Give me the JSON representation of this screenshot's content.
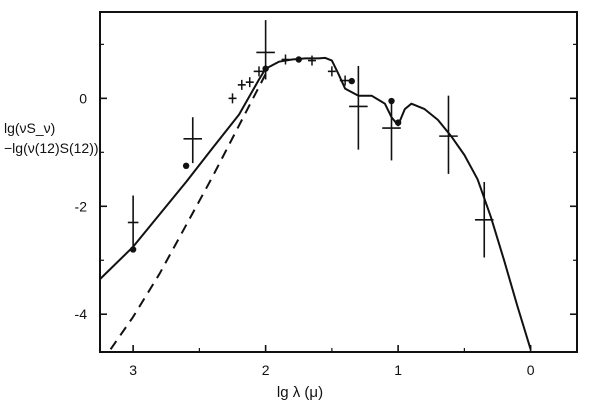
{
  "chart_data": {
    "type": "line",
    "title": "",
    "xlabel": "lg λ (μ)",
    "ylabel_line1": "lg(νS_ν)",
    "ylabel_line2": "−lg(ν(12)S(12))",
    "xlim": [
      3.25,
      -0.35
    ],
    "ylim": [
      -4.7,
      1.6
    ],
    "x_ticks": [
      3,
      2,
      1,
      0
    ],
    "x_tick_labels": [
      "3",
      "2",
      "1",
      "0"
    ],
    "y_ticks": [
      0,
      -2,
      -4
    ],
    "y_tick_labels": [
      "0",
      "-2",
      "-4"
    ],
    "grid": false,
    "legend": "none",
    "series": [
      {
        "style": "solid",
        "x": [
          3.25,
          3.0,
          2.8,
          2.6,
          2.4,
          2.2,
          2.05,
          2.0,
          1.9,
          1.8,
          1.7,
          1.6,
          1.55,
          1.5,
          1.45,
          1.4,
          1.3,
          1.2,
          1.1,
          1.05,
          1.0,
          0.95,
          0.9,
          0.8,
          0.7,
          0.6,
          0.5,
          0.4,
          0.3,
          0.2,
          0.1,
          0.0
        ],
        "y": [
          -3.35,
          -2.75,
          -2.15,
          -1.55,
          -0.92,
          -0.3,
          0.35,
          0.55,
          0.68,
          0.72,
          0.74,
          0.74,
          0.75,
          0.7,
          0.45,
          0.18,
          0.05,
          0.05,
          -0.1,
          -0.35,
          -0.5,
          -0.2,
          -0.1,
          -0.2,
          -0.4,
          -0.7,
          -1.05,
          -1.5,
          -2.2,
          -3.0,
          -3.85,
          -4.65
        ]
      },
      {
        "style": "dashed",
        "x": [
          3.17,
          3.0,
          2.8,
          2.6,
          2.4,
          2.2,
          2.0
        ],
        "y": [
          -4.65,
          -4.05,
          -3.25,
          -2.35,
          -1.45,
          -0.5,
          0.45
        ]
      }
    ],
    "points": [
      {
        "x": 3.0,
        "y": -2.3,
        "xerr": 0.04,
        "y_low": -2.85,
        "y_high": -1.8
      },
      {
        "x": 3.0,
        "y": -2.8,
        "xerr": 0.0,
        "y_low": -2.8,
        "y_high": -2.8
      },
      {
        "x": 2.55,
        "y": -0.75,
        "xerr": 0.07,
        "y_low": -1.2,
        "y_high": -0.35
      },
      {
        "x": 2.6,
        "y": -1.25,
        "xerr": 0.0,
        "y_low": -1.25,
        "y_high": -1.25
      },
      {
        "x": 2.25,
        "y": 0.0,
        "xerr": 0.03,
        "y_low": 0.0,
        "y_high": 0.0
      },
      {
        "x": 2.18,
        "y": 0.25,
        "xerr": 0.03,
        "y_low": 0.25,
        "y_high": 0.25
      },
      {
        "x": 2.12,
        "y": 0.3,
        "xerr": 0.03,
        "y_low": 0.3,
        "y_high": 0.3
      },
      {
        "x": 2.05,
        "y": 0.5,
        "xerr": 0.04,
        "y_low": 0.5,
        "y_high": 0.5
      },
      {
        "x": 2.0,
        "y": 0.55,
        "xerr": 0.0,
        "y_low": 0.55,
        "y_high": 0.55
      },
      {
        "x": 2.0,
        "y": 0.85,
        "xerr": 0.07,
        "y_low": 0.35,
        "y_high": 1.45
      },
      {
        "x": 1.85,
        "y": 0.72,
        "xerr": 0.03,
        "y_low": 0.72,
        "y_high": 0.72
      },
      {
        "x": 1.75,
        "y": 0.72,
        "xerr": 0.0,
        "y_low": 0.72,
        "y_high": 0.72
      },
      {
        "x": 1.65,
        "y": 0.7,
        "xerr": 0.03,
        "y_low": 0.7,
        "y_high": 0.7
      },
      {
        "x": 1.5,
        "y": 0.5,
        "xerr": 0.03,
        "y_low": 0.5,
        "y_high": 0.5
      },
      {
        "x": 1.4,
        "y": 0.33,
        "xerr": 0.04,
        "y_low": 0.33,
        "y_high": 0.33
      },
      {
        "x": 1.35,
        "y": 0.32,
        "xerr": 0.0,
        "y_low": 0.32,
        "y_high": 0.32
      },
      {
        "x": 1.3,
        "y": -0.15,
        "xerr": 0.07,
        "y_low": -0.95,
        "y_high": 0.6
      },
      {
        "x": 1.05,
        "y": -0.55,
        "xerr": 0.07,
        "y_low": -1.15,
        "y_high": -0.05
      },
      {
        "x": 1.05,
        "y": -0.05,
        "xerr": 0.0,
        "y_low": -0.05,
        "y_high": -0.05
      },
      {
        "x": 1.0,
        "y": -0.45,
        "xerr": 0.0,
        "y_low": -0.45,
        "y_high": -0.45
      },
      {
        "x": 0.62,
        "y": -0.7,
        "xerr": 0.07,
        "y_low": -1.4,
        "y_high": 0.05
      },
      {
        "x": 0.35,
        "y": -2.25,
        "xerr": 0.07,
        "y_low": -2.95,
        "y_high": -1.55
      }
    ]
  }
}
